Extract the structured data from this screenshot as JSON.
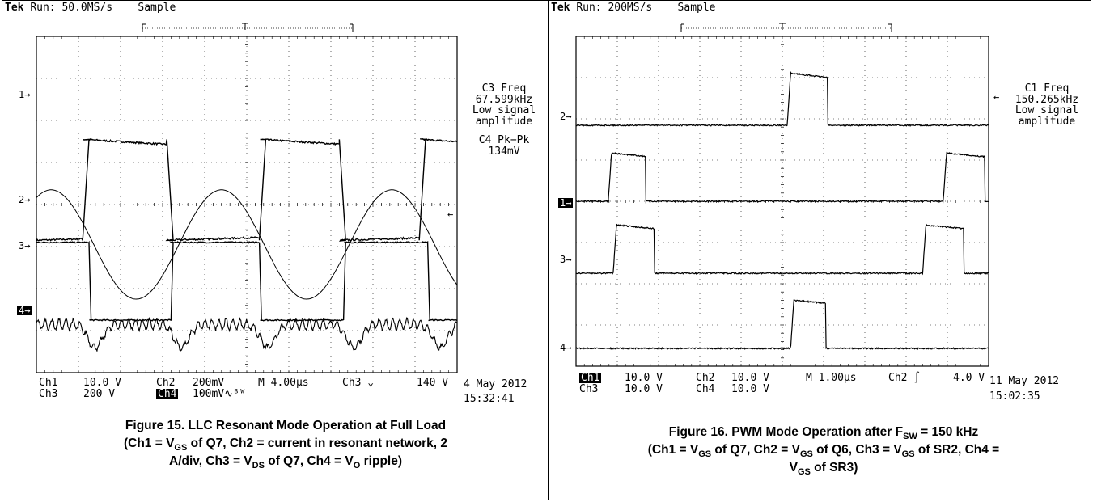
{
  "figures": [
    {
      "header": {
        "brand": "Tek",
        "run": "Run: 50.0MS/s",
        "mode": "Sample"
      },
      "side": {
        "l1": "C3 Freq",
        "l2": "67.599kHz",
        "l3": "Low signal",
        "l4": "amplitude",
        "l5": "C4 Pk−Pk",
        "l6": "134mV"
      },
      "markers": {
        "m1": "1→",
        "m2": "2→",
        "m3": "3→",
        "m4": "4→",
        "arrow": "←"
      },
      "footer": {
        "ch1": "Ch1",
        "ch1v": "10.0 V",
        "ch2": "Ch2",
        "ch2v": "200mV",
        "time": "M 4.00µs",
        "trig": "Ch3 ⌄",
        "trigv": "140 V",
        "ch3": "Ch3",
        "ch3v": "200 V",
        "ch4": "Ch4",
        "ch4v": "100mV∿ᴮᵂ",
        "date": "4 May 2012",
        "clock": "15:32:41"
      },
      "caption": {
        "line1": "Figure 15. LLC Resonant Mode Operation at Full Load",
        "line2a": "(Ch1 = V",
        "line2b": "GS",
        "line2c": " of Q7, Ch2 = current in resonant network, 2",
        "line3a": "A/div, Ch3 = V",
        "line3b": "DS",
        "line3c": " of Q7, Ch4 = V",
        "line3d": "O",
        "line3e": " ripple)"
      }
    },
    {
      "header": {
        "brand": "Tek",
        "run": "Run: 200MS/s",
        "mode": "Sample"
      },
      "side": {
        "l1": "C1 Freq",
        "l2": "150.265kHz",
        "l3": "Low signal",
        "l4": "amplitude"
      },
      "markers": {
        "m1": "1→",
        "m2": "2→",
        "m3": "3→",
        "m4": "4→",
        "arrow": "←"
      },
      "footer": {
        "ch1": "Ch1",
        "ch1v": "10.0 V",
        "ch2": "Ch2",
        "ch2v": "10.0 V",
        "time": "M 1.00µs",
        "trig": "Ch2 ∫",
        "trigv": "4.0 V",
        "ch3": "Ch3",
        "ch3v": "10.0 V",
        "ch4": "Ch4",
        "ch4v": "10.0 V",
        "date": "11 May 2012",
        "clock": "15:02:35"
      },
      "caption": {
        "line1a": "Figure 16. PWM Mode Operation after F",
        "line1b": "SW",
        "line1c": " = 150 kHz",
        "line2a": "(Ch1 = V",
        "line2b": "GS",
        "line2c": " of Q7, Ch2 = V",
        "line2d": "GS",
        "line2e": " of Q6, Ch3 = V",
        "line2f": "GS",
        "line2g": " of SR2, Ch4 =",
        "line3a": "V",
        "line3b": "GS",
        "line3c": " of SR3)"
      }
    }
  ],
  "chart_data": [
    {
      "type": "line",
      "title": "Figure 15. LLC Resonant Mode Operation at Full Load",
      "x_unit": "µs",
      "x_per_div": 4.0,
      "x_divisions": 10,
      "y_divisions": 8,
      "series": [
        {
          "name": "Ch1",
          "desc": "VGS of Q7",
          "scale_per_div": "10.0 V",
          "levels_div": [
            -0.85,
            1.55
          ],
          "transitions_div": [
            [
              0,
              "low"
            ],
            [
              1.1,
              "up"
            ],
            [
              3.1,
              "down"
            ],
            [
              5.3,
              "up"
            ],
            [
              7.2,
              "down"
            ],
            [
              9.1,
              "up"
            ]
          ]
        },
        {
          "name": "Ch2",
          "desc": "current in resonant network",
          "scale_per_div": "200mV",
          "peak_div": 1.25,
          "period_div": 4.05
        },
        {
          "name": "Ch3",
          "desc": "VDS of Q7",
          "scale_per_div": "200 V",
          "levels_div": [
            -2.75,
            -0.9
          ],
          "transitions_div": [
            [
              0,
              "high"
            ],
            [
              1.25,
              "down"
            ],
            [
              3.2,
              "up"
            ],
            [
              5.3,
              "down"
            ],
            [
              7.3,
              "up"
            ],
            [
              9.3,
              "down"
            ]
          ]
        },
        {
          "name": "Ch4",
          "desc": "VO ripple",
          "scale_per_div": "100mV",
          "pk_pk": "134mV"
        }
      ],
      "measurements": {
        "c3_freq": "67.599kHz",
        "c4_pkpk": "134mV"
      }
    },
    {
      "type": "line",
      "title": "Figure 16. PWM Mode Operation after FSW = 150 kHz",
      "x_unit": "µs",
      "x_per_div": 1.0,
      "x_divisions": 10,
      "y_divisions": 8,
      "series": [
        {
          "name": "Ch1",
          "desc": "VGS of Q7",
          "scale_per_div": "10.0 V",
          "pulses_div": [
            [
              0.78,
              1.68
            ],
            [
              8.9,
              9.9
            ]
          ]
        },
        {
          "name": "Ch2",
          "desc": "VGS of Q6",
          "scale_per_div": "10.0 V",
          "pulses_div": [
            [
              5.12,
              6.1
            ]
          ]
        },
        {
          "name": "Ch3",
          "desc": "VGS of SR2",
          "scale_per_div": "10.0 V",
          "pulses_div": [
            [
              0.9,
              1.9
            ],
            [
              8.4,
              9.4
            ]
          ]
        },
        {
          "name": "Ch4",
          "desc": "VGS of SR3",
          "scale_per_div": "10.0 V",
          "pulses_div": [
            [
              5.2,
              6.05
            ]
          ]
        }
      ],
      "measurements": {
        "c1_freq": "150.265kHz"
      }
    }
  ]
}
